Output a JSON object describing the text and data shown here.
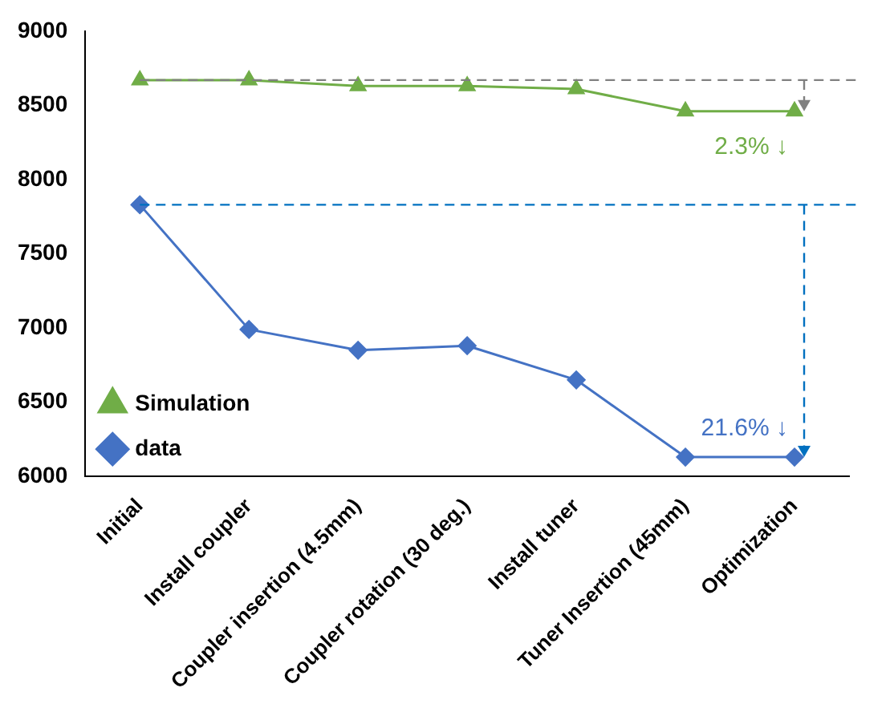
{
  "chart_data": {
    "type": "line",
    "categories": [
      "Initial",
      "Install coupler",
      "Coupler insertion (4.5mm)",
      "Coupler rotation (30 deg.)",
      "Install tuner",
      "Tuner Insertion (45mm)",
      "Optimization"
    ],
    "series": [
      {
        "name": "Simulation",
        "color": "#70ad47",
        "marker": "triangle",
        "values": [
          8670,
          8670,
          8630,
          8630,
          8610,
          8460,
          8460
        ]
      },
      {
        "name": "data",
        "color": "#4472c4",
        "marker": "diamond",
        "values": [
          7830,
          6990,
          6850,
          6880,
          6650,
          6130,
          6130
        ]
      }
    ],
    "ylim": [
      6000,
      9000
    ],
    "yticks": [
      6000,
      6500,
      7000,
      7500,
      8000,
      8500,
      9000
    ],
    "grid": false,
    "legend": "bottom left",
    "ref_lines": [
      {
        "axis": "y",
        "value": 8670,
        "color": "#808080",
        "line_style": "dashed"
      },
      {
        "axis": "y",
        "value": 7830,
        "color": "#0070c0",
        "line_style": "dashed"
      }
    ],
    "annotations": [
      {
        "text": "2.3% ↓",
        "x": "Optimization",
        "y": 8460
      },
      {
        "text": "21.6% ↓",
        "x": "Optimization",
        "y": 6130
      }
    ]
  }
}
